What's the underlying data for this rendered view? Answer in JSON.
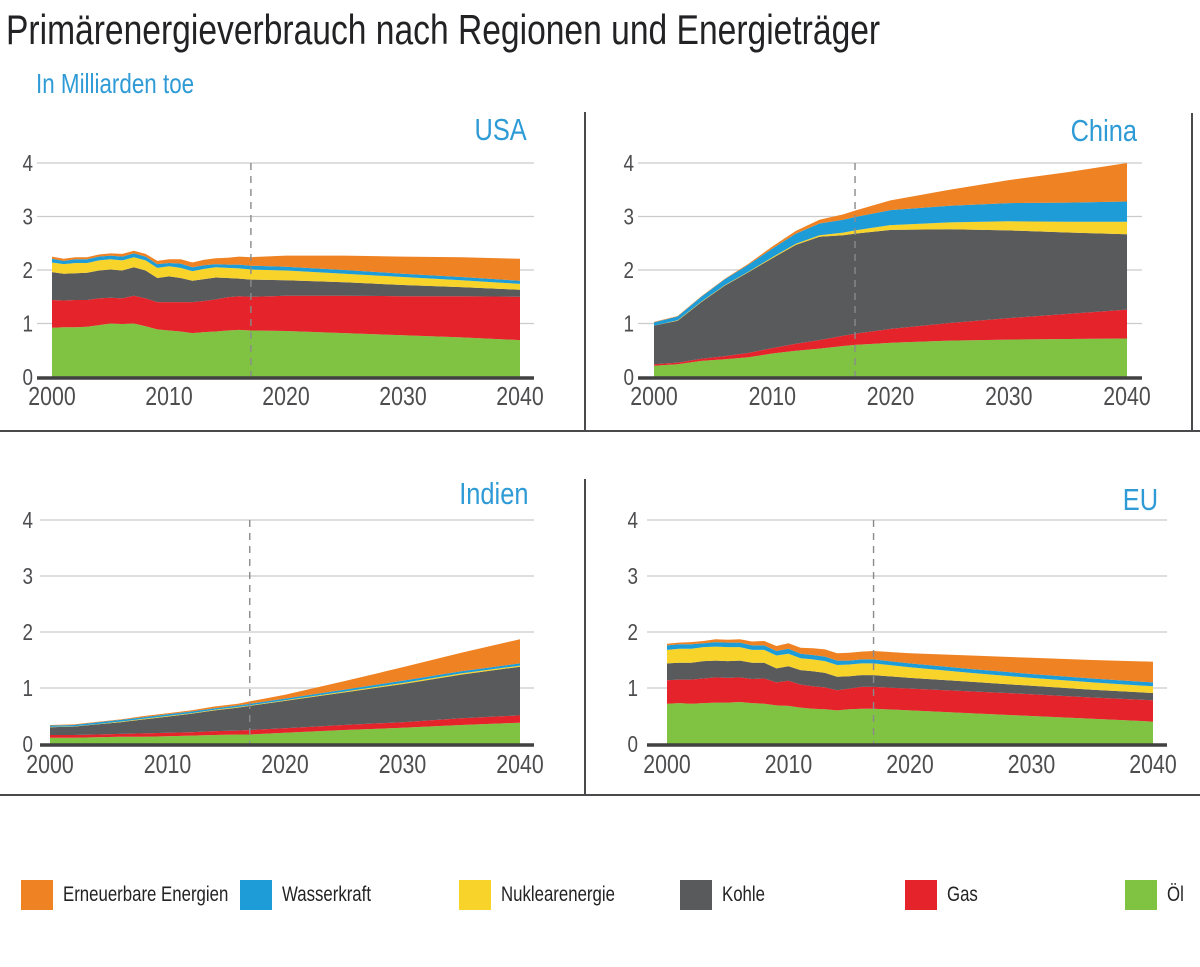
{
  "header": {
    "title": "Primärenergieverbrauch nach Regionen und Energieträger",
    "subtitle": "In Milliarden toe"
  },
  "colors": {
    "erneuerbare": "#EF8222",
    "wasserkraft": "#1E9CD8",
    "nuklear": "#F8D32A",
    "kohle": "#595A5C",
    "gas": "#E5232B",
    "oel": "#80C342",
    "chart_title": "#2E9BD6",
    "grid": "#CBCBCB",
    "axis": "#414042",
    "dash": "#8A8A8C",
    "tick_text": "#4D4D4F",
    "divider": "#4A4A4C"
  },
  "legend": {
    "items": [
      {
        "label": "Erneuerbare Energien",
        "color_key": "erneuerbare"
      },
      {
        "label": "Wasserkraft",
        "color_key": "wasserkraft"
      },
      {
        "label": "Nuklearenergie",
        "color_key": "nuklear"
      },
      {
        "label": "Kohle",
        "color_key": "kohle"
      },
      {
        "label": "Gas",
        "color_key": "gas"
      },
      {
        "label": "Öl",
        "color_key": "oel"
      }
    ]
  },
  "chart_data": [
    {
      "id": "usa",
      "region": "USA",
      "type": "area",
      "stacked": true,
      "unit": "Milliarden toe",
      "ylim": [
        0,
        4
      ],
      "yticks": [
        0,
        1,
        2,
        3,
        4
      ],
      "xticks": [
        2000,
        2010,
        2020,
        2030,
        2040
      ],
      "dashed_line_x": 2017,
      "grid": true,
      "x": [
        2000,
        2001,
        2002,
        2003,
        2004,
        2005,
        2006,
        2007,
        2008,
        2009,
        2010,
        2011,
        2012,
        2013,
        2014,
        2015,
        2016,
        2017,
        2020,
        2025,
        2030,
        2035,
        2040
      ],
      "series": [
        {
          "name": "Öl",
          "color_key": "oel",
          "values": [
            0.92,
            0.93,
            0.93,
            0.94,
            0.97,
            1.0,
            0.99,
            1.0,
            0.95,
            0.89,
            0.87,
            0.85,
            0.82,
            0.84,
            0.85,
            0.87,
            0.88,
            0.87,
            0.86,
            0.82,
            0.78,
            0.74,
            0.69
          ]
        },
        {
          "name": "Gas",
          "color_key": "gas",
          "values": [
            0.52,
            0.5,
            0.51,
            0.5,
            0.5,
            0.48,
            0.48,
            0.52,
            0.52,
            0.51,
            0.53,
            0.55,
            0.58,
            0.58,
            0.6,
            0.62,
            0.63,
            0.63,
            0.66,
            0.7,
            0.73,
            0.77,
            0.81
          ]
        },
        {
          "name": "Kohle",
          "color_key": "kohle",
          "values": [
            0.52,
            0.5,
            0.5,
            0.51,
            0.52,
            0.53,
            0.52,
            0.53,
            0.52,
            0.45,
            0.48,
            0.45,
            0.4,
            0.41,
            0.41,
            0.36,
            0.33,
            0.32,
            0.29,
            0.25,
            0.21,
            0.17,
            0.13
          ]
        },
        {
          "name": "Nuklearenergie",
          "color_key": "nuklear",
          "values": [
            0.18,
            0.18,
            0.19,
            0.18,
            0.19,
            0.19,
            0.19,
            0.19,
            0.19,
            0.19,
            0.19,
            0.19,
            0.18,
            0.19,
            0.19,
            0.19,
            0.19,
            0.19,
            0.18,
            0.16,
            0.15,
            0.13,
            0.11
          ]
        },
        {
          "name": "Wasserkraft",
          "color_key": "wasserkraft",
          "values": [
            0.07,
            0.06,
            0.07,
            0.07,
            0.07,
            0.07,
            0.07,
            0.07,
            0.07,
            0.07,
            0.06,
            0.08,
            0.07,
            0.07,
            0.06,
            0.06,
            0.07,
            0.07,
            0.07,
            0.07,
            0.06,
            0.06,
            0.06
          ]
        },
        {
          "name": "Erneuerbare Energien",
          "color_key": "erneuerbare",
          "values": [
            0.04,
            0.04,
            0.04,
            0.04,
            0.04,
            0.04,
            0.05,
            0.05,
            0.05,
            0.06,
            0.07,
            0.08,
            0.09,
            0.1,
            0.11,
            0.13,
            0.15,
            0.16,
            0.21,
            0.27,
            0.32,
            0.37,
            0.41
          ]
        }
      ]
    },
    {
      "id": "china",
      "region": "China",
      "type": "area",
      "stacked": true,
      "unit": "Milliarden toe",
      "ylim": [
        0,
        4
      ],
      "yticks": [
        0,
        1,
        2,
        3,
        4
      ],
      "xticks": [
        2000,
        2010,
        2020,
        2030,
        2040
      ],
      "dashed_line_x": 2017,
      "grid": true,
      "x": [
        2000,
        2002,
        2004,
        2006,
        2008,
        2010,
        2012,
        2014,
        2016,
        2017,
        2020,
        2025,
        2030,
        2035,
        2040
      ],
      "series": [
        {
          "name": "Öl",
          "color_key": "oel",
          "values": [
            0.21,
            0.24,
            0.3,
            0.33,
            0.37,
            0.44,
            0.49,
            0.53,
            0.58,
            0.6,
            0.64,
            0.68,
            0.7,
            0.71,
            0.72
          ]
        },
        {
          "name": "Gas",
          "color_key": "gas",
          "values": [
            0.03,
            0.03,
            0.04,
            0.06,
            0.08,
            0.1,
            0.13,
            0.16,
            0.19,
            0.21,
            0.26,
            0.33,
            0.4,
            0.47,
            0.54
          ]
        },
        {
          "name": "Kohle",
          "color_key": "kohle",
          "values": [
            0.72,
            0.78,
            1.06,
            1.32,
            1.51,
            1.68,
            1.85,
            1.93,
            1.88,
            1.87,
            1.85,
            1.75,
            1.64,
            1.52,
            1.41
          ]
        },
        {
          "name": "Nuklearenergie",
          "color_key": "nuklear",
          "values": [
            0.0,
            0.01,
            0.01,
            0.01,
            0.01,
            0.02,
            0.02,
            0.03,
            0.05,
            0.06,
            0.09,
            0.13,
            0.17,
            0.2,
            0.23
          ]
        },
        {
          "name": "Wasserkraft",
          "color_key": "wasserkraft",
          "values": [
            0.06,
            0.07,
            0.09,
            0.11,
            0.13,
            0.16,
            0.19,
            0.22,
            0.24,
            0.25,
            0.28,
            0.31,
            0.34,
            0.36,
            0.38
          ]
        },
        {
          "name": "Erneuerbare Energien",
          "color_key": "erneuerbare",
          "values": [
            0.01,
            0.01,
            0.01,
            0.01,
            0.02,
            0.04,
            0.05,
            0.07,
            0.1,
            0.12,
            0.18,
            0.3,
            0.43,
            0.57,
            0.72
          ]
        }
      ]
    },
    {
      "id": "indien",
      "region": "Indien",
      "type": "area",
      "stacked": true,
      "unit": "Milliarden toe",
      "ylim": [
        0,
        4
      ],
      "yticks": [
        0,
        1,
        2,
        3,
        4
      ],
      "xticks": [
        2000,
        2010,
        2020,
        2030,
        2040
      ],
      "dashed_line_x": 2017,
      "grid": true,
      "x": [
        2000,
        2002,
        2004,
        2006,
        2008,
        2010,
        2012,
        2014,
        2016,
        2017,
        2020,
        2025,
        2030,
        2035,
        2040
      ],
      "series": [
        {
          "name": "Öl",
          "color_key": "oel",
          "values": [
            0.11,
            0.11,
            0.12,
            0.13,
            0.13,
            0.14,
            0.15,
            0.16,
            0.17,
            0.17,
            0.2,
            0.25,
            0.29,
            0.34,
            0.38
          ]
        },
        {
          "name": "Gas",
          "color_key": "gas",
          "values": [
            0.05,
            0.05,
            0.05,
            0.05,
            0.06,
            0.06,
            0.06,
            0.07,
            0.07,
            0.08,
            0.08,
            0.09,
            0.1,
            0.12,
            0.13
          ]
        },
        {
          "name": "Kohle",
          "color_key": "kohle",
          "values": [
            0.14,
            0.15,
            0.18,
            0.21,
            0.25,
            0.29,
            0.33,
            0.37,
            0.41,
            0.43,
            0.49,
            0.58,
            0.68,
            0.78,
            0.87
          ]
        },
        {
          "name": "Nuklearenergie",
          "color_key": "nuklear",
          "values": [
            0.005,
            0.005,
            0.005,
            0.01,
            0.01,
            0.01,
            0.01,
            0.01,
            0.01,
            0.01,
            0.01,
            0.015,
            0.02,
            0.02,
            0.02
          ]
        },
        {
          "name": "Wasserkraft",
          "color_key": "wasserkraft",
          "values": [
            0.025,
            0.025,
            0.03,
            0.03,
            0.03,
            0.03,
            0.03,
            0.03,
            0.03,
            0.03,
            0.03,
            0.035,
            0.04,
            0.04,
            0.04
          ]
        },
        {
          "name": "Erneuerbare Energien",
          "color_key": "erneuerbare",
          "values": [
            0.01,
            0.01,
            0.01,
            0.01,
            0.02,
            0.02,
            0.02,
            0.03,
            0.03,
            0.04,
            0.07,
            0.15,
            0.24,
            0.33,
            0.43
          ]
        }
      ]
    },
    {
      "id": "eu",
      "region": "EU",
      "type": "area",
      "stacked": true,
      "unit": "Milliarden toe",
      "ylim": [
        0,
        4
      ],
      "yticks": [
        0,
        1,
        2,
        3,
        4
      ],
      "xticks": [
        2000,
        2010,
        2020,
        2030,
        2040
      ],
      "dashed_line_x": 2017,
      "grid": true,
      "x": [
        2000,
        2001,
        2002,
        2003,
        2004,
        2005,
        2006,
        2007,
        2008,
        2009,
        2010,
        2011,
        2012,
        2013,
        2014,
        2015,
        2016,
        2017,
        2020,
        2025,
        2030,
        2035,
        2040
      ],
      "series": [
        {
          "name": "Öl",
          "color_key": "oel",
          "values": [
            0.72,
            0.73,
            0.72,
            0.73,
            0.74,
            0.74,
            0.75,
            0.73,
            0.72,
            0.69,
            0.68,
            0.65,
            0.63,
            0.62,
            0.6,
            0.62,
            0.63,
            0.63,
            0.6,
            0.55,
            0.5,
            0.45,
            0.4
          ]
        },
        {
          "name": "Gas",
          "color_key": "gas",
          "values": [
            0.42,
            0.42,
            0.43,
            0.44,
            0.45,
            0.44,
            0.44,
            0.43,
            0.45,
            0.41,
            0.45,
            0.41,
            0.4,
            0.39,
            0.36,
            0.37,
            0.39,
            0.39,
            0.39,
            0.39,
            0.39,
            0.38,
            0.38
          ]
        },
        {
          "name": "Kohle",
          "color_key": "kohle",
          "values": [
            0.3,
            0.3,
            0.3,
            0.31,
            0.3,
            0.3,
            0.3,
            0.29,
            0.28,
            0.25,
            0.26,
            0.26,
            0.27,
            0.26,
            0.24,
            0.22,
            0.21,
            0.21,
            0.19,
            0.17,
            0.15,
            0.14,
            0.13
          ]
        },
        {
          "name": "Nuklearenergie",
          "color_key": "nuklear",
          "values": [
            0.24,
            0.25,
            0.25,
            0.25,
            0.25,
            0.25,
            0.24,
            0.23,
            0.23,
            0.23,
            0.22,
            0.21,
            0.21,
            0.21,
            0.21,
            0.21,
            0.21,
            0.21,
            0.19,
            0.16,
            0.14,
            0.13,
            0.12
          ]
        },
        {
          "name": "Wasserkraft",
          "color_key": "wasserkraft",
          "values": [
            0.08,
            0.08,
            0.08,
            0.07,
            0.08,
            0.08,
            0.08,
            0.08,
            0.08,
            0.08,
            0.09,
            0.08,
            0.08,
            0.08,
            0.08,
            0.07,
            0.07,
            0.07,
            0.07,
            0.07,
            0.07,
            0.07,
            0.07
          ]
        },
        {
          "name": "Erneuerbare Energien",
          "color_key": "erneuerbare",
          "values": [
            0.03,
            0.03,
            0.04,
            0.04,
            0.05,
            0.05,
            0.06,
            0.07,
            0.08,
            0.09,
            0.1,
            0.11,
            0.12,
            0.13,
            0.13,
            0.14,
            0.14,
            0.15,
            0.18,
            0.24,
            0.29,
            0.33,
            0.37
          ]
        }
      ]
    }
  ]
}
